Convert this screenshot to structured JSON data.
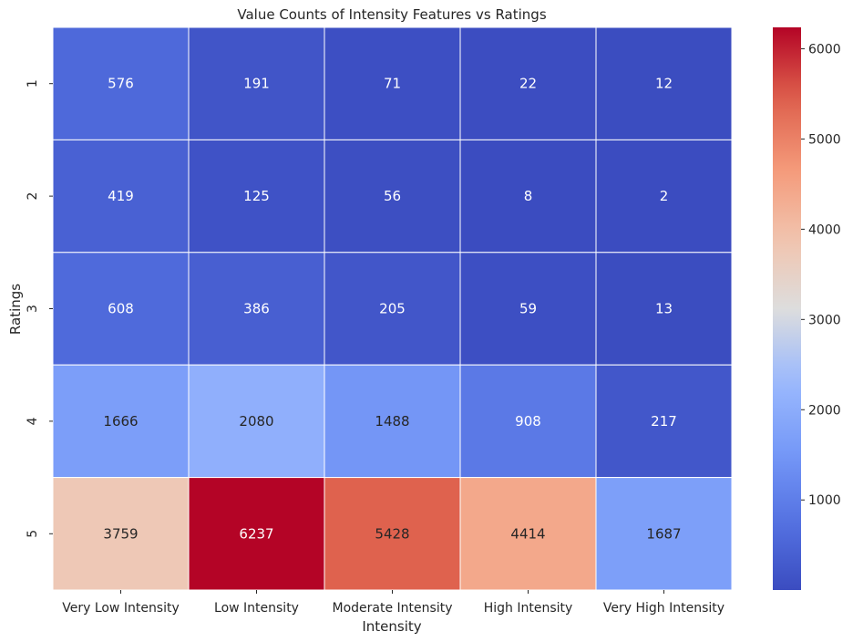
{
  "chart_data": {
    "type": "heatmap",
    "title": "Value Counts of Intensity Features vs Ratings",
    "xlabel": "Intensity",
    "ylabel": "Ratings",
    "x_categories": [
      "Very Low Intensity",
      "Low Intensity",
      "Moderate Intensity",
      "High Intensity",
      "Very High Intensity"
    ],
    "y_categories": [
      "1",
      "2",
      "3",
      "4",
      "5"
    ],
    "values": [
      [
        576,
        191,
        71,
        22,
        12
      ],
      [
        419,
        125,
        56,
        8,
        2
      ],
      [
        608,
        386,
        205,
        59,
        13
      ],
      [
        1666,
        2080,
        1488,
        908,
        217
      ],
      [
        3759,
        6237,
        5428,
        4414,
        1687
      ]
    ],
    "colormap": "coolwarm",
    "vmin": 2,
    "vmax": 6237,
    "colorbar_ticks": [
      1000,
      2000,
      3000,
      4000,
      5000,
      6000
    ],
    "annotations": true,
    "grid": false,
    "cell_border_color": "#ffffff"
  }
}
